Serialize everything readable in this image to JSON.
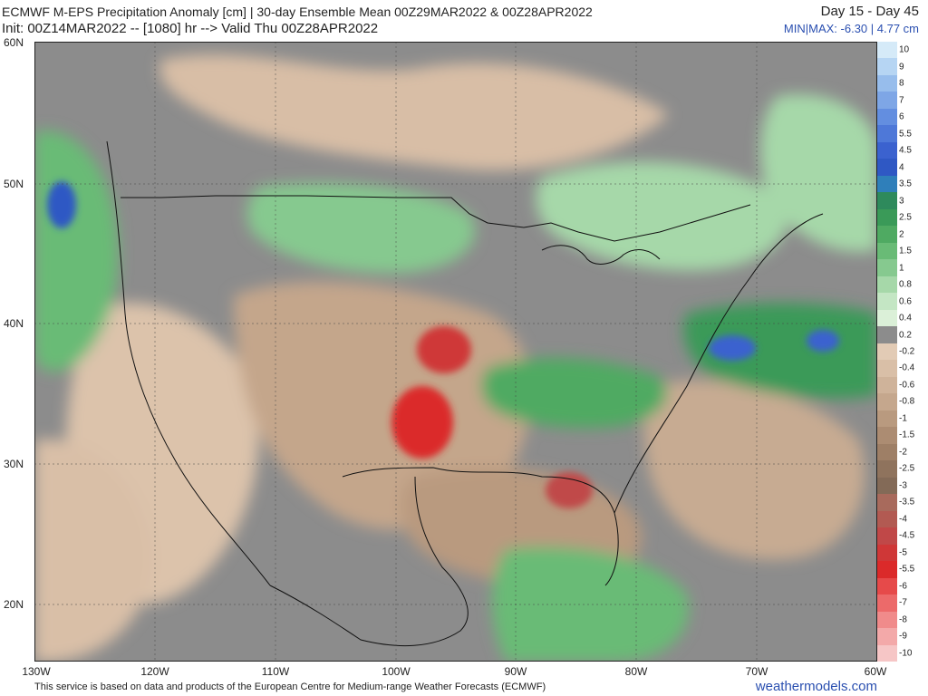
{
  "header": {
    "title_line1": "ECMWF M-EPS Precipitation Anomaly [cm] | 30-day Ensemble Mean 00Z29MAR2022 & 00Z28APR2022",
    "title_line2": "Init: 00Z14MAR2022 -- [1080] hr --> Valid Thu 00Z28APR2022",
    "day_range": "Day 15 - Day 45",
    "minmax": "MIN|MAX: -6.30 | 4.77 cm"
  },
  "map": {
    "lon_labels": [
      "130W",
      "120W",
      "110W",
      "100W",
      "90W",
      "80W",
      "70W",
      "60W"
    ],
    "lat_labels": [
      "60N",
      "50N",
      "40N",
      "30N",
      "20N"
    ],
    "lon_range": [
      -130,
      -60
    ],
    "lat_range": [
      16.5,
      60
    ]
  },
  "colorbar": {
    "labels": [
      "10",
      "9",
      "8",
      "7",
      "6",
      "5.5",
      "4.5",
      "4",
      "3.5",
      "3",
      "2.5",
      "2",
      "1.5",
      "1",
      "0.8",
      "0.6",
      "0.4",
      "0.2",
      "-0.2",
      "-0.4",
      "-0.6",
      "-0.8",
      "-1",
      "-1.5",
      "-2",
      "-2.5",
      "-3",
      "-3.5",
      "-4",
      "-4.5",
      "-5",
      "-5.5",
      "-6",
      "-7",
      "-8",
      "-9",
      "-10"
    ],
    "colors": [
      "#d5eaf8",
      "#b6d5f3",
      "#97bdec",
      "#7ea6e6",
      "#638ee0",
      "#4e78d8",
      "#3b62cf",
      "#2f58c4",
      "#2f7fba",
      "#2e8a5c",
      "#3a9a58",
      "#4faa62",
      "#69bb76",
      "#86c98f",
      "#a6d8a9",
      "#c4e6c4",
      "#dbf0d8",
      "#8c8c8c",
      "#e2cbb5",
      "#d9bfa7",
      "#cfb39a",
      "#c5a78d",
      "#b99a7f",
      "#ac8c72",
      "#9e7f66",
      "#8f735d",
      "#836a57",
      "#a86a5c",
      "#b25a52",
      "#c04848",
      "#cf3737",
      "#db2a2a",
      "#e64a4a",
      "#ec6a6a",
      "#f08b8b",
      "#f3a9a9",
      "#f6c6c6"
    ]
  },
  "footer": {
    "credit": "This service is based on data and products of the European Centre for Medium-range Weather Forecasts (ECMWF)",
    "brand": "weathermodels.com"
  }
}
